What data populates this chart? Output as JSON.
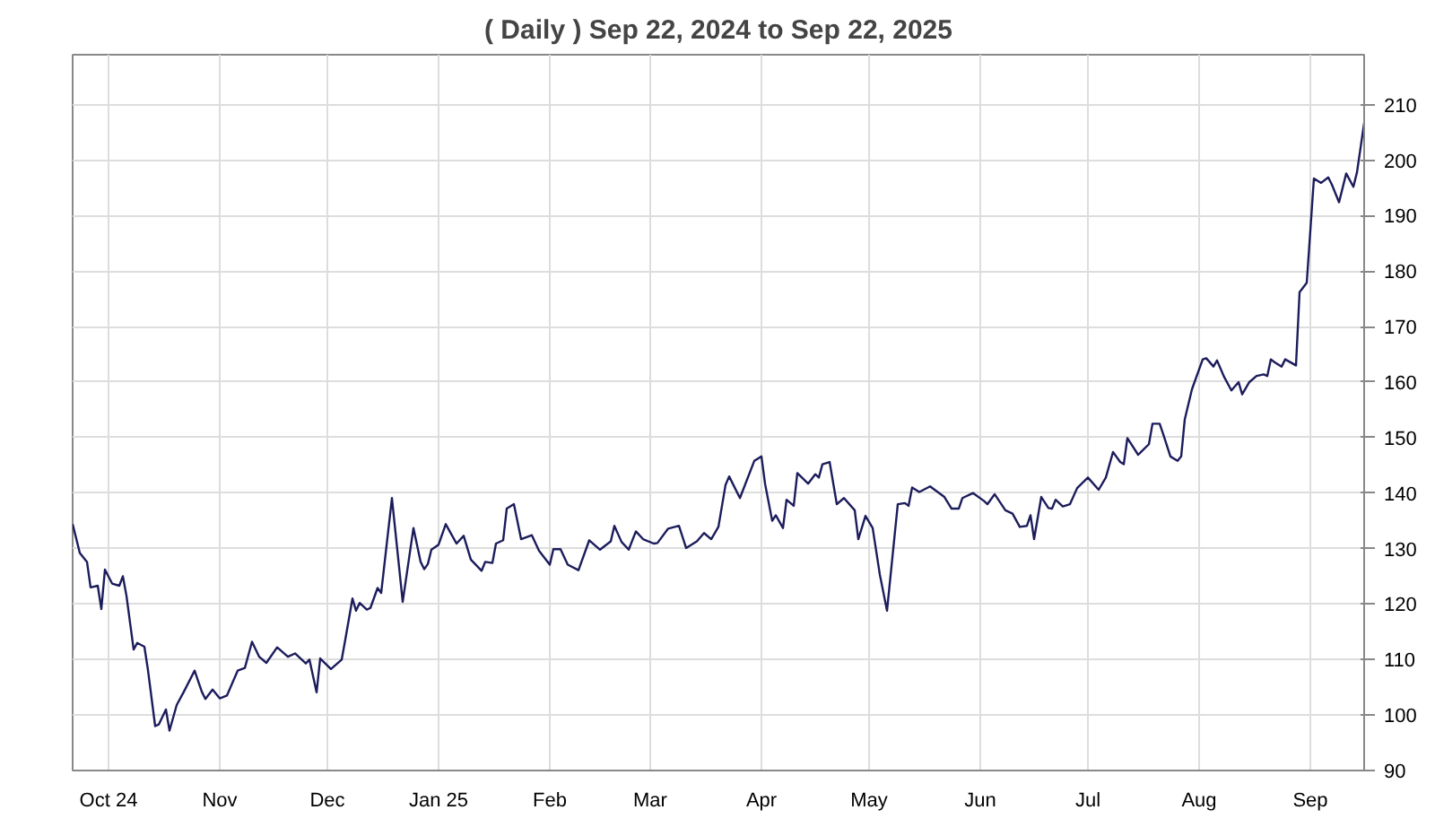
{
  "chart_data": {
    "type": "line",
    "title": "( Daily ) Sep 22, 2024 to Sep 22, 2025",
    "x": [
      "2024-09-21",
      "2024-09-23",
      "2024-09-25",
      "2024-09-26",
      "2024-09-28",
      "2024-09-29",
      "2024-09-30",
      "2024-10-02",
      "2024-10-04",
      "2024-10-05",
      "2024-10-06",
      "2024-10-08",
      "2024-10-09",
      "2024-10-11",
      "2024-10-12",
      "2024-10-14",
      "2024-10-15",
      "2024-10-17",
      "2024-10-18",
      "2024-10-20",
      "2024-10-22",
      "2024-10-25",
      "2024-10-27",
      "2024-10-28",
      "2024-10-30",
      "2024-11-01",
      "2024-11-03",
      "2024-11-06",
      "2024-11-08",
      "2024-11-10",
      "2024-11-12",
      "2024-11-14",
      "2024-11-17",
      "2024-11-20",
      "2024-11-22",
      "2024-11-25",
      "2024-11-26",
      "2024-11-28",
      "2024-11-29",
      "2024-12-02",
      "2024-12-05",
      "2024-12-06",
      "2024-12-08",
      "2024-12-09",
      "2024-12-10",
      "2024-12-12",
      "2024-12-13",
      "2024-12-15",
      "2024-12-16",
      "2024-12-19",
      "2024-12-22",
      "2024-12-25",
      "2024-12-27",
      "2024-12-28",
      "2024-12-29",
      "2024-12-30",
      "2025-01-01",
      "2025-01-03",
      "2025-01-06",
      "2025-01-08",
      "2025-01-10",
      "2025-01-13",
      "2025-01-14",
      "2025-01-16",
      "2025-01-17",
      "2025-01-19",
      "2025-01-20",
      "2025-01-22",
      "2025-01-24",
      "2025-01-27",
      "2025-01-29",
      "2025-02-01",
      "2025-02-02",
      "2025-02-04",
      "2025-02-06",
      "2025-02-09",
      "2025-02-12",
      "2025-02-15",
      "2025-02-18",
      "2025-02-19",
      "2025-02-21",
      "2025-02-23",
      "2025-02-25",
      "2025-02-27",
      "2025-03-02",
      "2025-03-03",
      "2025-03-06",
      "2025-03-09",
      "2025-03-11",
      "2025-03-14",
      "2025-03-16",
      "2025-03-18",
      "2025-03-20",
      "2025-03-22",
      "2025-03-23",
      "2025-03-26",
      "2025-03-30",
      "2025-04-01",
      "2025-04-02",
      "2025-04-04",
      "2025-04-05",
      "2025-04-07",
      "2025-04-08",
      "2025-04-10",
      "2025-04-11",
      "2025-04-14",
      "2025-04-16",
      "2025-04-17",
      "2025-04-18",
      "2025-04-20",
      "2025-04-22",
      "2025-04-24",
      "2025-04-27",
      "2025-04-28",
      "2025-04-30",
      "2025-05-02",
      "2025-05-04",
      "2025-05-06",
      "2025-05-09",
      "2025-05-11",
      "2025-05-12",
      "2025-05-13",
      "2025-05-15",
      "2025-05-18",
      "2025-05-22",
      "2025-05-24",
      "2025-05-26",
      "2025-05-27",
      "2025-05-30",
      "2025-06-02",
      "2025-06-03",
      "2025-06-05",
      "2025-06-08",
      "2025-06-10",
      "2025-06-12",
      "2025-06-14",
      "2025-06-15",
      "2025-06-16",
      "2025-06-18",
      "2025-06-20",
      "2025-06-21",
      "2025-06-22",
      "2025-06-24",
      "2025-06-26",
      "2025-06-28",
      "2025-07-01",
      "2025-07-04",
      "2025-07-06",
      "2025-07-08",
      "2025-07-10",
      "2025-07-11",
      "2025-07-12",
      "2025-07-15",
      "2025-07-18",
      "2025-07-19",
      "2025-07-21",
      "2025-07-22",
      "2025-07-24",
      "2025-07-26",
      "2025-07-27",
      "2025-07-28",
      "2025-07-30",
      "2025-08-02",
      "2025-08-03",
      "2025-08-05",
      "2025-08-06",
      "2025-08-08",
      "2025-08-10",
      "2025-08-12",
      "2025-08-13",
      "2025-08-15",
      "2025-08-17",
      "2025-08-19",
      "2025-08-20",
      "2025-08-21",
      "2025-08-22",
      "2025-08-24",
      "2025-08-25",
      "2025-08-28",
      "2025-08-29",
      "2025-08-31",
      "2025-09-02",
      "2025-09-04",
      "2025-09-06",
      "2025-09-07",
      "2025-09-09",
      "2025-09-11",
      "2025-09-13",
      "2025-09-14",
      "2025-09-16"
    ],
    "series": [
      {
        "color": "#1c1c5c",
        "values": [
          134.4,
          129.2,
          127.6,
          123,
          123.3,
          119.1,
          126.2,
          123.7,
          123.3,
          125,
          121.5,
          111.8,
          113,
          112.3,
          108.1,
          98,
          98.3,
          101,
          97.2,
          101.8,
          104.2,
          108,
          104.2,
          102.9,
          104.6,
          103,
          103.5,
          108,
          108.5,
          113.2,
          110.5,
          109.4,
          112.2,
          110.5,
          111.1,
          109.3,
          110,
          104.1,
          110.2,
          108.3,
          110,
          113.6,
          121,
          118.8,
          120.2,
          119,
          119.3,
          122.9,
          122,
          139.1,
          120.4,
          133.7,
          127.6,
          126.3,
          127.2,
          129.8,
          130.7,
          134.4,
          130.9,
          132.3,
          128,
          126,
          127.6,
          127.4,
          130.9,
          131.5,
          137.2,
          138,
          131.7,
          132.4,
          129.6,
          127.1,
          129.9,
          129.9,
          127.1,
          126.1,
          131.5,
          129.8,
          131.3,
          134.1,
          131.2,
          129.8,
          133.1,
          131.7,
          130.9,
          131,
          133.6,
          134.1,
          130.1,
          131.3,
          132.8,
          131.7,
          133.9,
          141.5,
          143,
          139.1,
          145.8,
          146.6,
          141.7,
          135,
          136,
          133.7,
          138.8,
          137.7,
          143.6,
          141.7,
          143.4,
          142.8,
          145.2,
          145.6,
          138,
          139.1,
          136.9,
          131.7,
          135.9,
          133.7,
          125.3,
          118.8,
          138,
          138.2,
          137.7,
          141,
          140.2,
          141.2,
          139.3,
          137.2,
          137.2,
          139.1,
          140,
          138.6,
          138,
          139.8,
          136.9,
          136.3,
          133.9,
          134.1,
          136,
          131.7,
          139.3,
          137.3,
          137.2,
          138.8,
          137.6,
          138,
          140.9,
          142.8,
          140.6,
          142.8,
          147.4,
          145.6,
          145.2,
          149.9,
          146.9,
          148.8,
          152.5,
          152.5,
          150.6,
          146.6,
          145.8,
          146.6,
          153.3,
          158.7,
          164.1,
          164.3,
          162.8,
          163.9,
          160.9,
          158.5,
          160,
          157.8,
          160,
          161.1,
          161.4,
          161.1,
          164.1,
          163.6,
          162.8,
          164.1,
          163,
          176.2,
          177.9,
          196.7,
          195.9,
          196.9,
          195.6,
          192.4,
          197.6,
          195.2,
          197.8,
          206.7
        ]
      }
    ],
    "xlim": [
      "2024-09-21",
      "2025-09-16"
    ],
    "xticks": [
      {
        "value": "2024-10-01",
        "label": "Oct 24"
      },
      {
        "value": "2024-11-01",
        "label": "Nov"
      },
      {
        "value": "2024-12-01",
        "label": "Dec"
      },
      {
        "value": "2025-01-01",
        "label": "Jan 25"
      },
      {
        "value": "2025-02-01",
        "label": "Feb"
      },
      {
        "value": "2025-03-01",
        "label": "Mar"
      },
      {
        "value": "2025-04-01",
        "label": "Apr"
      },
      {
        "value": "2025-05-01",
        "label": "May"
      },
      {
        "value": "2025-06-01",
        "label": "Jun"
      },
      {
        "value": "2025-07-01",
        "label": "Jul"
      },
      {
        "value": "2025-08-01",
        "label": "Aug"
      },
      {
        "value": "2025-09-01",
        "label": "Sep"
      }
    ],
    "ylim": [
      90,
      219
    ],
    "yticks": [
      90,
      100,
      110,
      120,
      130,
      140,
      150,
      160,
      170,
      180,
      190,
      200,
      210
    ],
    "grid": true
  }
}
